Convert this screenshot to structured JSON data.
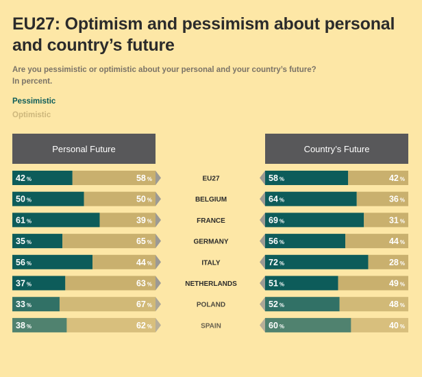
{
  "title": "EU27: Optimism and pessimism about personal and country’s future",
  "subtitle_line1": "Are you pessimistic or optimistic about your personal and your country’s future?",
  "subtitle_line2": "In percent.",
  "colors": {
    "pessimistic": "#0d5c5a",
    "optimistic": "#c9b06e",
    "header": "#58585a",
    "background": "#fde7a6"
  },
  "chart_data": {
    "type": "bar",
    "orientation": "horizontal-stacked",
    "unit": "%",
    "legend": [
      "Pessimistic",
      "Optimistic"
    ],
    "panels": [
      "Personal Future",
      "Country’s Future"
    ],
    "categories": [
      "EU27",
      "BELGIUM",
      "FRANCE",
      "GERMANY",
      "ITALY",
      "NETHERLANDS",
      "POLAND",
      "SPAIN"
    ],
    "personal": {
      "pessimistic": [
        42,
        50,
        61,
        35,
        56,
        37,
        33,
        38
      ],
      "optimistic": [
        58,
        50,
        39,
        65,
        44,
        63,
        67,
        62
      ]
    },
    "country": {
      "pessimistic": [
        58,
        64,
        69,
        56,
        72,
        51,
        52,
        60
      ],
      "optimistic": [
        42,
        36,
        31,
        44,
        28,
        49,
        48,
        40
      ]
    }
  }
}
